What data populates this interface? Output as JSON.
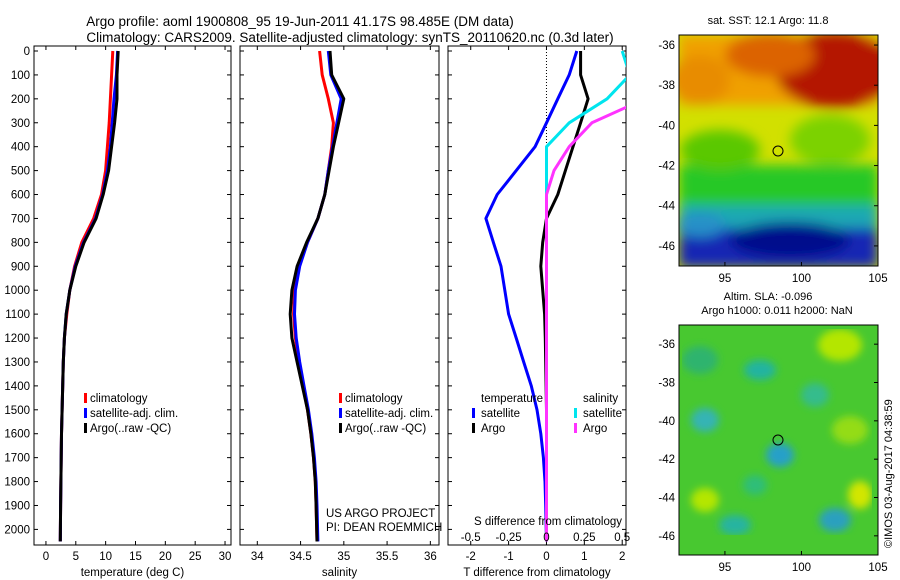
{
  "header": {
    "line1": "Argo profile: aoml 1900808_95 19-Jun-2011 41.17S 98.485E (DM data)",
    "line2": "Climatology: CARS2009. Satellite-adjusted climatology: synTS_20110620.nc (0.3d later)"
  },
  "colors": {
    "climatology": "#ff0000",
    "satellite": "#0000ff",
    "argo": "#000000",
    "salinity_satellite": "#00e5ee",
    "salinity_argo": "#ff33ff"
  },
  "chart_data": [
    {
      "type": "line",
      "panel": "temperature",
      "xlabel": "temperature (deg C)",
      "xlim": [
        -2,
        31
      ],
      "xticks": [
        0,
        5,
        10,
        15,
        20,
        25,
        30
      ],
      "ylim": [
        0,
        2060
      ],
      "yticks": [
        0,
        100,
        200,
        300,
        400,
        500,
        600,
        700,
        800,
        900,
        1000,
        1100,
        1200,
        1300,
        1400,
        1500,
        1600,
        1700,
        1800,
        1900,
        2000
      ],
      "legend": [
        "climatology",
        "satellite-adj. clim.",
        "Argo(..raw -QC)"
      ],
      "series": [
        {
          "name": "climatology",
          "color": "#ff0000",
          "x": [
            11.2,
            11.0,
            10.8,
            10.6,
            10.3,
            10.0,
            9.3,
            8.0,
            6.0,
            4.8,
            4.0,
            3.5,
            3.1,
            2.9,
            2.8,
            2.7,
            2.6,
            2.55,
            2.5,
            2.45,
            2.4
          ],
          "y": [
            0,
            100,
            200,
            300,
            400,
            500,
            600,
            700,
            800,
            900,
            1000,
            1100,
            1200,
            1300,
            1400,
            1500,
            1600,
            1700,
            1800,
            1900,
            2050
          ]
        },
        {
          "name": "satellite-adj. clim.",
          "color": "#0000ff",
          "x": [
            12.0,
            11.8,
            11.4,
            11.1,
            10.8,
            10.3,
            9.5,
            8.3,
            6.3,
            4.9,
            4.0,
            3.4,
            3.1,
            2.9,
            2.8,
            2.7,
            2.6,
            2.55,
            2.5,
            2.45,
            2.4
          ],
          "y": [
            0,
            100,
            200,
            300,
            400,
            500,
            600,
            700,
            800,
            900,
            1000,
            1100,
            1200,
            1300,
            1400,
            1500,
            1600,
            1700,
            1800,
            1900,
            2050
          ]
        },
        {
          "name": "Argo(..raw -QC)",
          "color": "#000000",
          "x": [
            12.1,
            11.9,
            11.9,
            11.5,
            11.0,
            10.5,
            9.6,
            8.4,
            6.4,
            5.0,
            4.0,
            3.4,
            3.1,
            2.9,
            2.8,
            2.7,
            2.6,
            2.55,
            2.5,
            2.45,
            2.4
          ],
          "y": [
            0,
            100,
            200,
            300,
            400,
            500,
            600,
            700,
            800,
            900,
            1000,
            1100,
            1200,
            1300,
            1400,
            1500,
            1600,
            1700,
            1800,
            1900,
            2050
          ]
        }
      ]
    },
    {
      "type": "line",
      "panel": "salinity",
      "xlabel": "salinity",
      "xlim": [
        33.8,
        36.1
      ],
      "xticks": [
        34,
        34.5,
        35,
        35.5,
        36
      ],
      "ylim": [
        0,
        2060
      ],
      "legend": [
        "climatology",
        "satellite-adj. clim.",
        "Argo(..raw -QC)"
      ],
      "annotations": [
        "US ARGO PROJECT",
        "PI: DEAN ROEMMICH"
      ],
      "series": [
        {
          "name": "climatology",
          "color": "#ff0000",
          "x": [
            34.72,
            34.75,
            34.82,
            34.88,
            34.86,
            34.82,
            34.78,
            34.7,
            34.58,
            34.48,
            34.43,
            34.42,
            34.44,
            34.48,
            34.53,
            34.58,
            34.62,
            34.65,
            34.67,
            34.68,
            34.69
          ],
          "y": [
            0,
            100,
            200,
            300,
            400,
            500,
            600,
            700,
            800,
            900,
            1000,
            1100,
            1200,
            1300,
            1400,
            1500,
            1600,
            1700,
            1800,
            1900,
            2050
          ]
        },
        {
          "name": "satellite-adj. clim.",
          "color": "#0000ff",
          "x": [
            34.82,
            34.85,
            34.97,
            34.92,
            34.87,
            34.82,
            34.78,
            34.7,
            34.58,
            34.49,
            34.44,
            34.43,
            34.45,
            34.49,
            34.54,
            34.59,
            34.63,
            34.66,
            34.68,
            34.69,
            34.7
          ],
          "y": [
            0,
            100,
            200,
            300,
            400,
            500,
            600,
            700,
            800,
            900,
            1000,
            1100,
            1200,
            1300,
            1400,
            1500,
            1600,
            1700,
            1800,
            1900,
            2050
          ]
        },
        {
          "name": "Argo(..raw -QC)",
          "color": "#000000",
          "x": [
            34.84,
            34.86,
            35.0,
            34.94,
            34.88,
            34.83,
            34.78,
            34.7,
            34.57,
            34.46,
            34.4,
            34.38,
            34.4,
            34.46,
            34.52,
            34.58,
            34.62,
            34.65,
            34.67,
            34.68,
            34.69
          ],
          "y": [
            0,
            100,
            200,
            300,
            400,
            500,
            600,
            700,
            800,
            900,
            1000,
            1100,
            1200,
            1300,
            1400,
            1500,
            1600,
            1700,
            1800,
            1900,
            2050
          ]
        }
      ]
    },
    {
      "type": "line",
      "panel": "differences",
      "xlabel": "T difference from climatology",
      "xlabel2": "S difference from climatology",
      "xlim": [
        -2.6,
        2.1
      ],
      "xticks": [
        -2,
        -1,
        0,
        1,
        2
      ],
      "xticklabels": [
        "-2",
        "-1",
        "0",
        "1",
        "2"
      ],
      "sticks_labels": [
        "-0.5",
        "-0.25",
        "0",
        "0.25",
        "0.5"
      ],
      "ylim": [
        0,
        2060
      ],
      "legend_temperature": [
        "temperature",
        "satellite",
        "Argo"
      ],
      "legend_salinity": [
        "salinity",
        "satellite",
        "Argo"
      ],
      "series": [
        {
          "name": "temperature satellite",
          "color": "#0000ff",
          "x": [
            0.8,
            0.6,
            0.3,
            0.0,
            -0.3,
            -0.8,
            -1.3,
            -1.6,
            -1.4,
            -1.2,
            -1.1,
            -1.0,
            -0.8,
            -0.6,
            -0.4,
            -0.25,
            -0.15,
            -0.08,
            -0.04,
            -0.02,
            0.0
          ],
          "y": [
            0,
            100,
            200,
            300,
            400,
            500,
            600,
            700,
            800,
            900,
            1000,
            1100,
            1200,
            1300,
            1400,
            1500,
            1600,
            1700,
            1800,
            1900,
            2050
          ]
        },
        {
          "name": "temperature Argo",
          "color": "#000000",
          "x": [
            0.9,
            0.9,
            1.1,
            0.9,
            0.7,
            0.5,
            0.3,
            0.0,
            -0.1,
            -0.15,
            -0.1,
            -0.05,
            -0.03,
            -0.02,
            -0.01,
            0.0,
            0.0,
            0.0,
            0.0,
            0.0,
            0.0
          ],
          "y": [
            0,
            100,
            200,
            300,
            400,
            500,
            600,
            700,
            800,
            900,
            1000,
            1100,
            1200,
            1300,
            1400,
            1500,
            1600,
            1700,
            1800,
            1900,
            2050
          ]
        },
        {
          "name": "salinity satellite",
          "color": "#00e5ee",
          "x": [
            0.5,
            0.55,
            0.4,
            0.15,
            0.0,
            0.0,
            0.0,
            0.0,
            0.0,
            0.0,
            0.0,
            0.0,
            0.0,
            0.0,
            0.0,
            0.0,
            0.0,
            0.0,
            0.0,
            0.0,
            0.0
          ],
          "y": [
            0,
            100,
            200,
            300,
            400,
            500,
            600,
            700,
            800,
            900,
            1000,
            1100,
            1200,
            1300,
            1400,
            1500,
            1600,
            1700,
            1800,
            1900,
            2050
          ]
        },
        {
          "name": "salinity Argo",
          "color": "#ff33ff",
          "x": [
            0.55,
            0.6,
            0.65,
            0.3,
            0.15,
            0.05,
            0.0,
            0.0,
            0.0,
            0.0,
            0.0,
            0.0,
            0.0,
            0.0,
            0.0,
            0.0,
            0.0,
            0.0,
            0.0,
            0.0,
            0.0
          ],
          "y": [
            0,
            100,
            200,
            300,
            400,
            500,
            600,
            700,
            800,
            900,
            1000,
            1100,
            1200,
            1300,
            1400,
            1500,
            1600,
            1700,
            1800,
            1900,
            2050
          ]
        }
      ]
    },
    {
      "type": "heatmap",
      "panel": "map-sst",
      "title": "sat. SST: 12.1  Argo: 11.8",
      "xlim": [
        92,
        105
      ],
      "ylim": [
        -47,
        -35.5
      ],
      "xticks": [
        95,
        100,
        105
      ],
      "yticks": [
        -36,
        -38,
        -40,
        -42,
        -44,
        -46
      ],
      "marker": {
        "lon": 98.485,
        "lat": -41.17
      }
    },
    {
      "type": "heatmap",
      "panel": "map-sla",
      "title": "Altim. SLA: -0.096",
      "subtitle": "Argo h1000: 0.011  h2000: NaN",
      "xlim": [
        92,
        105
      ],
      "ylim": [
        -47,
        -35
      ],
      "xticks": [
        95,
        100,
        105
      ],
      "yticks": [
        -36,
        -38,
        -40,
        -42,
        -44,
        -46
      ],
      "marker": {
        "lon": 98.485,
        "lat": -41.17
      }
    }
  ],
  "credit": "©IMOS 03-Aug-2017 04:38:59"
}
